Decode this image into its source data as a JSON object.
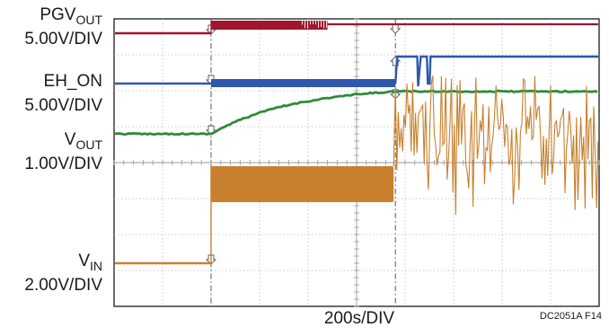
{
  "chart_data": {
    "type": "line",
    "title": "",
    "xlabel": "200s/DIV",
    "figure_id": "DC2051A F14",
    "grid": true,
    "divisions": {
      "x": 10,
      "y": 8
    },
    "xlim_div": [
      0,
      10
    ],
    "ylim_div": [
      0,
      8
    ],
    "events_div": [
      2.0,
      5.8
    ],
    "series": [
      {
        "name_main": "PGV",
        "name_sub": "OUT",
        "scale": "5.00V/DIV",
        "color": "#a0162e",
        "kind": "pgv",
        "low_div": 7.6,
        "high_div": 7.95,
        "high2_div": 7.85,
        "burst_end_div": 4.4
      },
      {
        "name_main": "EH_ON",
        "name_sub": "",
        "scale": "5.00V/DIV",
        "color": "#2f57ad",
        "kind": "ehon",
        "low_div": 6.2,
        "high_div": 6.95,
        "blip_div": [
          6.25,
          6.45
        ]
      },
      {
        "name_main": "V",
        "name_sub": "OUT",
        "scale": "1.00V/DIV",
        "color": "#2e8c3a",
        "kind": "vout",
        "start_div": 4.8,
        "end_div": 5.98
      },
      {
        "name_main": "V",
        "name_sub": "IN",
        "scale": "2.00V/DIV",
        "color": "#c8802e",
        "kind": "vin",
        "low_div": 1.2,
        "band_div": [
          2.9,
          3.9
        ],
        "noisy_div": [
          2.3,
          5.8
        ]
      }
    ]
  }
}
